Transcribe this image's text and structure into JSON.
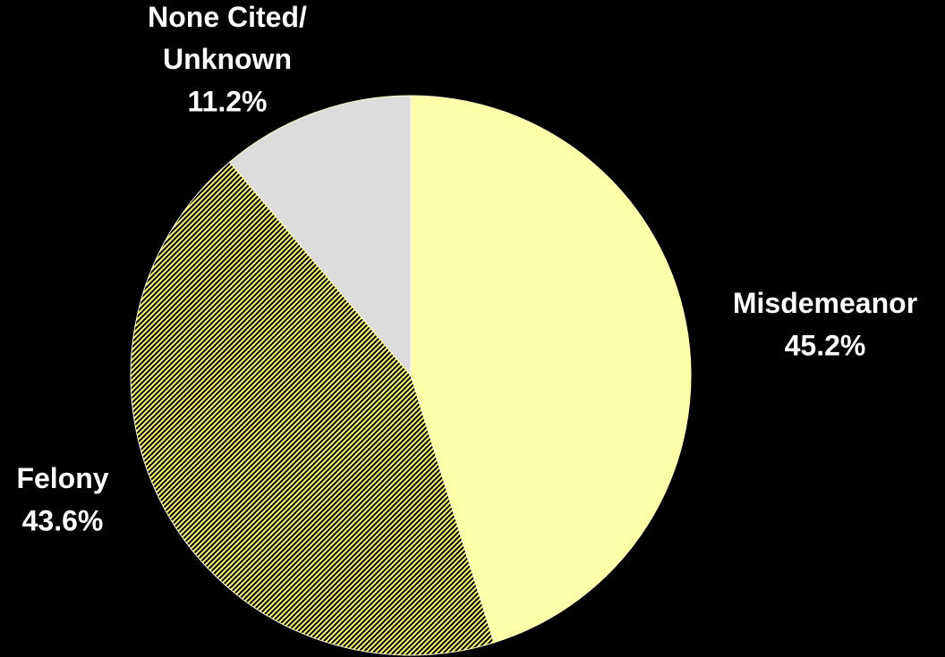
{
  "chart_data": {
    "type": "pie",
    "categories": [
      "Misdemeanor",
      "Felony",
      "None Cited/ Unknown"
    ],
    "values": [
      45.2,
      43.6,
      11.2
    ],
    "value_labels": [
      "45.2%",
      "43.6%",
      "11.2%"
    ],
    "colors": [
      "#ffffaa",
      "#ffff66",
      "#dcdcdc"
    ],
    "hatch": [
      false,
      true,
      false
    ]
  }
}
